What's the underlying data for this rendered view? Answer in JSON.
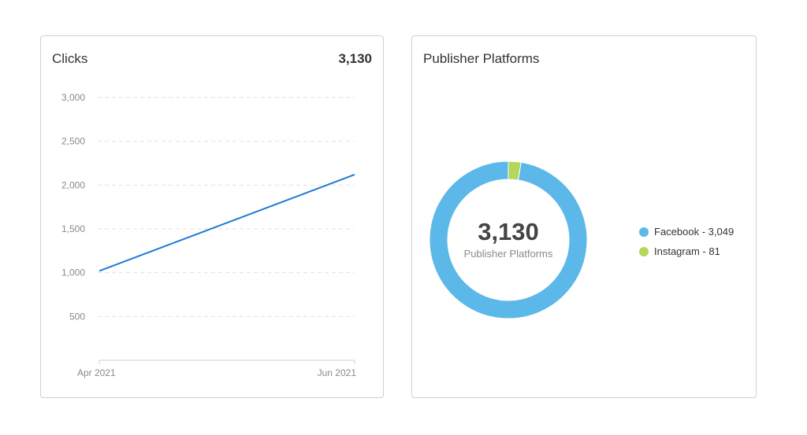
{
  "clicks_card": {
    "title": "Clicks",
    "total": "3,130"
  },
  "platforms_card": {
    "title": "Publisher Platforms",
    "center_value": "3,130",
    "center_label": "Publisher Platforms",
    "legend": [
      "Facebook - 3,049",
      "Instagram - 81"
    ]
  },
  "colors": {
    "line": "#1f7ad6",
    "facebook": "#5bb8e8",
    "instagram": "#b4d65a",
    "grid": "#e2e2e2",
    "axis": "#cfcfcf"
  },
  "chart_data": [
    {
      "type": "line",
      "title": "Clicks",
      "xlabel": "",
      "ylabel": "",
      "x": [
        "Apr 2021",
        "Jun 2021"
      ],
      "series": [
        {
          "name": "Clicks",
          "values": [
            1020,
            2120
          ]
        }
      ],
      "ylim": [
        0,
        3000
      ],
      "yticks": [
        500,
        1000,
        1500,
        2000,
        2500,
        3000
      ],
      "ytick_labels": [
        "500",
        "1,000",
        "1,500",
        "2,000",
        "2,500",
        "3,000"
      ],
      "xtick_labels": [
        "Apr  2021",
        "Jun 2021"
      ],
      "grid": true
    },
    {
      "type": "pie",
      "title": "Publisher Platforms",
      "categories": [
        "Facebook",
        "Instagram"
      ],
      "values": [
        3049,
        81
      ],
      "total": 3130,
      "donut": true
    }
  ]
}
